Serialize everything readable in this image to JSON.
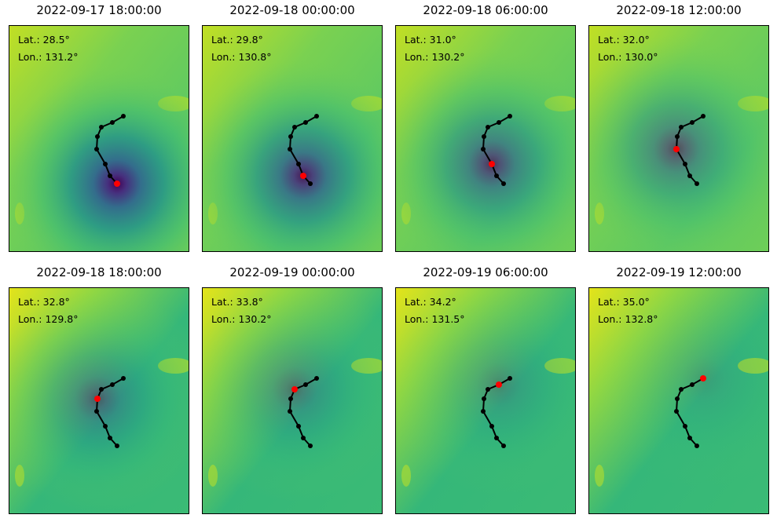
{
  "chart_data": {
    "type": "scatter",
    "title": "",
    "panels": [
      {
        "title": "2022-09-17 18:00:00",
        "lat_label": "Lat.: 28.5°",
        "lon_label": "Lon.: 131.2°",
        "current_index": 0
      },
      {
        "title": "2022-09-18 00:00:00",
        "lat_label": "Lat.: 29.8°",
        "lon_label": "Lon.: 130.8°",
        "current_index": 1
      },
      {
        "title": "2022-09-18 06:00:00",
        "lat_label": "Lat.: 31.0°",
        "lon_label": "Lon.: 130.2°",
        "current_index": 2
      },
      {
        "title": "2022-09-18 12:00:00",
        "lat_label": "Lat.: 32.0°",
        "lon_label": "Lon.: 130.0°",
        "current_index": 3
      },
      {
        "title": "2022-09-18 18:00:00",
        "lat_label": "Lat.: 32.8°",
        "lon_label": "Lon.: 129.8°",
        "current_index": 4
      },
      {
        "title": "2022-09-19 00:00:00",
        "lat_label": "Lat.: 33.8°",
        "lon_label": "Lon.: 130.2°",
        "current_index": 5
      },
      {
        "title": "2022-09-19 06:00:00",
        "lat_label": "Lat.: 34.2°",
        "lon_label": "Lon.: 131.5°",
        "current_index": 6
      },
      {
        "title": "2022-09-19 12:00:00",
        "lat_label": "Lat.: 35.0°",
        "lon_label": "Lon.: 132.8°",
        "current_index": 7
      }
    ],
    "track": [
      {
        "lat": 28.5,
        "lon": 131.2
      },
      {
        "lat": 29.8,
        "lon": 130.8
      },
      {
        "lat": 31.0,
        "lon": 130.2
      },
      {
        "lat": 32.0,
        "lon": 130.0
      },
      {
        "lat": 32.8,
        "lon": 129.8
      },
      {
        "lat": 33.8,
        "lon": 130.2
      },
      {
        "lat": 34.2,
        "lon": 131.5
      },
      {
        "lat": 35.0,
        "lon": 132.8
      }
    ],
    "colors": {
      "track": "#000000",
      "current_position": "#ff0000",
      "colormap": "viridis"
    },
    "grid": false,
    "axes_ticks": false
  }
}
